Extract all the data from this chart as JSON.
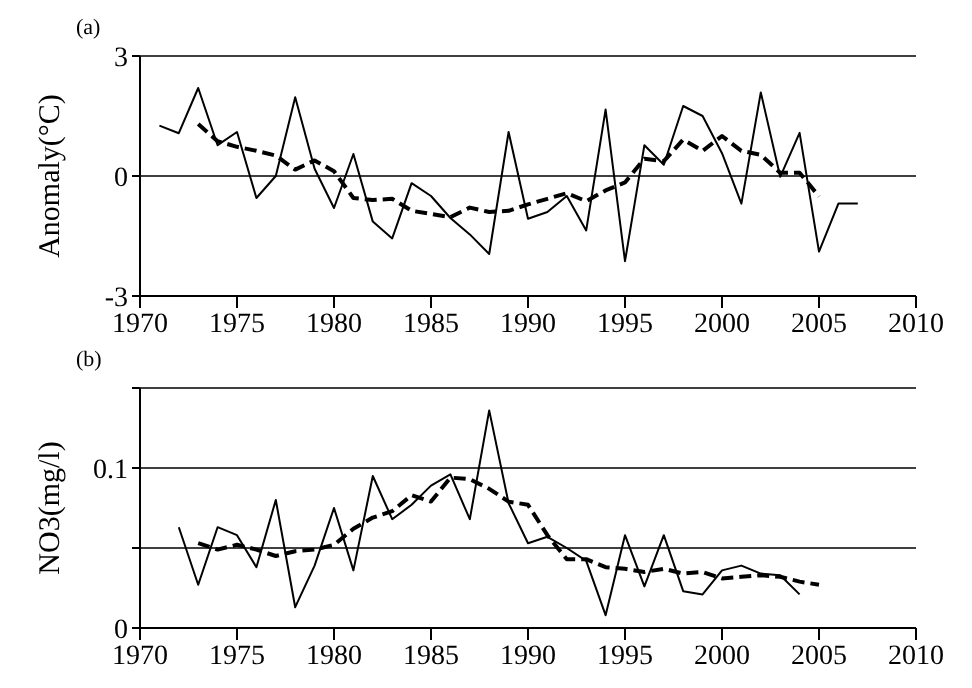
{
  "chart_data": [
    {
      "type": "line",
      "title": "(a)",
      "ylabel": "Anomaly(°C)",
      "xlim": [
        1970,
        2010
      ],
      "xticks": [
        1970,
        1975,
        1980,
        1985,
        1990,
        1995,
        2000,
        2005,
        2010
      ],
      "ylim": [
        -3,
        3
      ],
      "yticks": [
        -3,
        0,
        3
      ],
      "grid": "y",
      "legend": false,
      "marker": "none",
      "series": [
        {
          "color": "#000000",
          "line_style": "solid",
          "x": [
            1971,
            1972,
            1973,
            1974,
            1975,
            1976,
            1977,
            1978,
            1979,
            1980,
            1981,
            1982,
            1983,
            1984,
            1985,
            1986,
            1987,
            1988,
            1989,
            1990,
            1991,
            1992,
            1993,
            1994,
            1995,
            1996,
            1997,
            1998,
            1999,
            2000,
            2001,
            2002,
            2003,
            2004,
            2005,
            2006,
            2007
          ],
          "values": [
            1.26,
            1.07,
            2.2,
            0.77,
            1.1,
            -0.55,
            0,
            1.97,
            0.18,
            -0.8,
            0.55,
            -1.14,
            -1.56,
            -0.18,
            -0.5,
            -1.05,
            -1.46,
            -1.95,
            1.1,
            -1.07,
            -0.9,
            -0.5,
            -1.36,
            1.66,
            -2.13,
            0.77,
            0.28,
            1.75,
            1.5,
            0.57,
            -0.69,
            2.09,
            -0.02,
            1.08,
            -1.89,
            -0.69,
            -0.69
          ]
        },
        {
          "color": "#000000",
          "line_style": "dashed",
          "x": [
            1973,
            1974,
            1975,
            1976,
            1977,
            1978,
            1979,
            1980,
            1981,
            1982,
            1983,
            1984,
            1985,
            1986,
            1987,
            1988,
            1989,
            1990,
            1991,
            1992,
            1993,
            1994,
            1995,
            1996,
            1997,
            1998,
            1999,
            2000,
            2001,
            2002,
            2003,
            2004,
            2005
          ],
          "values": [
            1.3,
            0.87,
            0.73,
            0.63,
            0.51,
            0.16,
            0.39,
            0.12,
            -0.55,
            -0.6,
            -0.57,
            -0.87,
            -0.95,
            -1.03,
            -0.79,
            -0.9,
            -0.87,
            -0.71,
            -0.57,
            -0.43,
            -0.63,
            -0.36,
            -0.16,
            0.43,
            0.37,
            0.91,
            0.63,
            1.0,
            0.63,
            0.53,
            0.08,
            0.08,
            -0.51
          ]
        }
      ]
    },
    {
      "type": "line",
      "title": "(b)",
      "ylabel": "NO3(mg/l)",
      "xlim": [
        1970,
        2010
      ],
      "xticks": [
        1970,
        1975,
        1980,
        1985,
        1990,
        1995,
        2000,
        2005,
        2010
      ],
      "ylim": [
        0,
        0.15
      ],
      "yticks": [
        0,
        {
          "value": 0.05,
          "label": null
        },
        0.1,
        {
          "value": 0.15,
          "label": null
        }
      ],
      "grid": "y",
      "legend": false,
      "marker": "none",
      "series": [
        {
          "color": "#000000",
          "line_style": "solid",
          "x": [
            1972,
            1973,
            1974,
            1975,
            1976,
            1977,
            1978,
            1979,
            1980,
            1981,
            1982,
            1983,
            1984,
            1985,
            1986,
            1987,
            1988,
            1989,
            1990,
            1991,
            1992,
            1993,
            1994,
            1995,
            1996,
            1997,
            1998,
            1999,
            2000,
            2001,
            2002,
            2003,
            2004
          ],
          "values": [
            0.063,
            0.027,
            0.063,
            0.058,
            0.038,
            0.08,
            0.013,
            0.039,
            0.075,
            0.036,
            0.095,
            0.068,
            0.077,
            0.089,
            0.096,
            0.068,
            0.136,
            0.078,
            0.053,
            0.057,
            0.05,
            0.042,
            0.008,
            0.058,
            0.026,
            0.058,
            0.023,
            0.021,
            0.036,
            0.039,
            0.034,
            0.033,
            0.021
          ]
        },
        {
          "color": "#000000",
          "line_style": "dashed",
          "x": [
            1973,
            1974,
            1975,
            1976,
            1977,
            1978,
            1979,
            1980,
            1981,
            1982,
            1983,
            1984,
            1985,
            1986,
            1987,
            1988,
            1989,
            1990,
            1991,
            1992,
            1993,
            1994,
            1995,
            1996,
            1997,
            1998,
            1999,
            2000,
            2001,
            2002,
            2003,
            2004,
            2005
          ],
          "values": [
            0.053,
            0.049,
            0.052,
            0.049,
            0.045,
            0.048,
            0.049,
            0.052,
            0.062,
            0.069,
            0.073,
            0.083,
            0.079,
            0.094,
            0.093,
            0.087,
            0.079,
            0.077,
            0.058,
            0.043,
            0.043,
            0.038,
            0.037,
            0.035,
            0.037,
            0.034,
            0.035,
            0.031,
            0.032,
            0.033,
            0.032,
            0.029,
            0.027
          ]
        }
      ]
    }
  ]
}
